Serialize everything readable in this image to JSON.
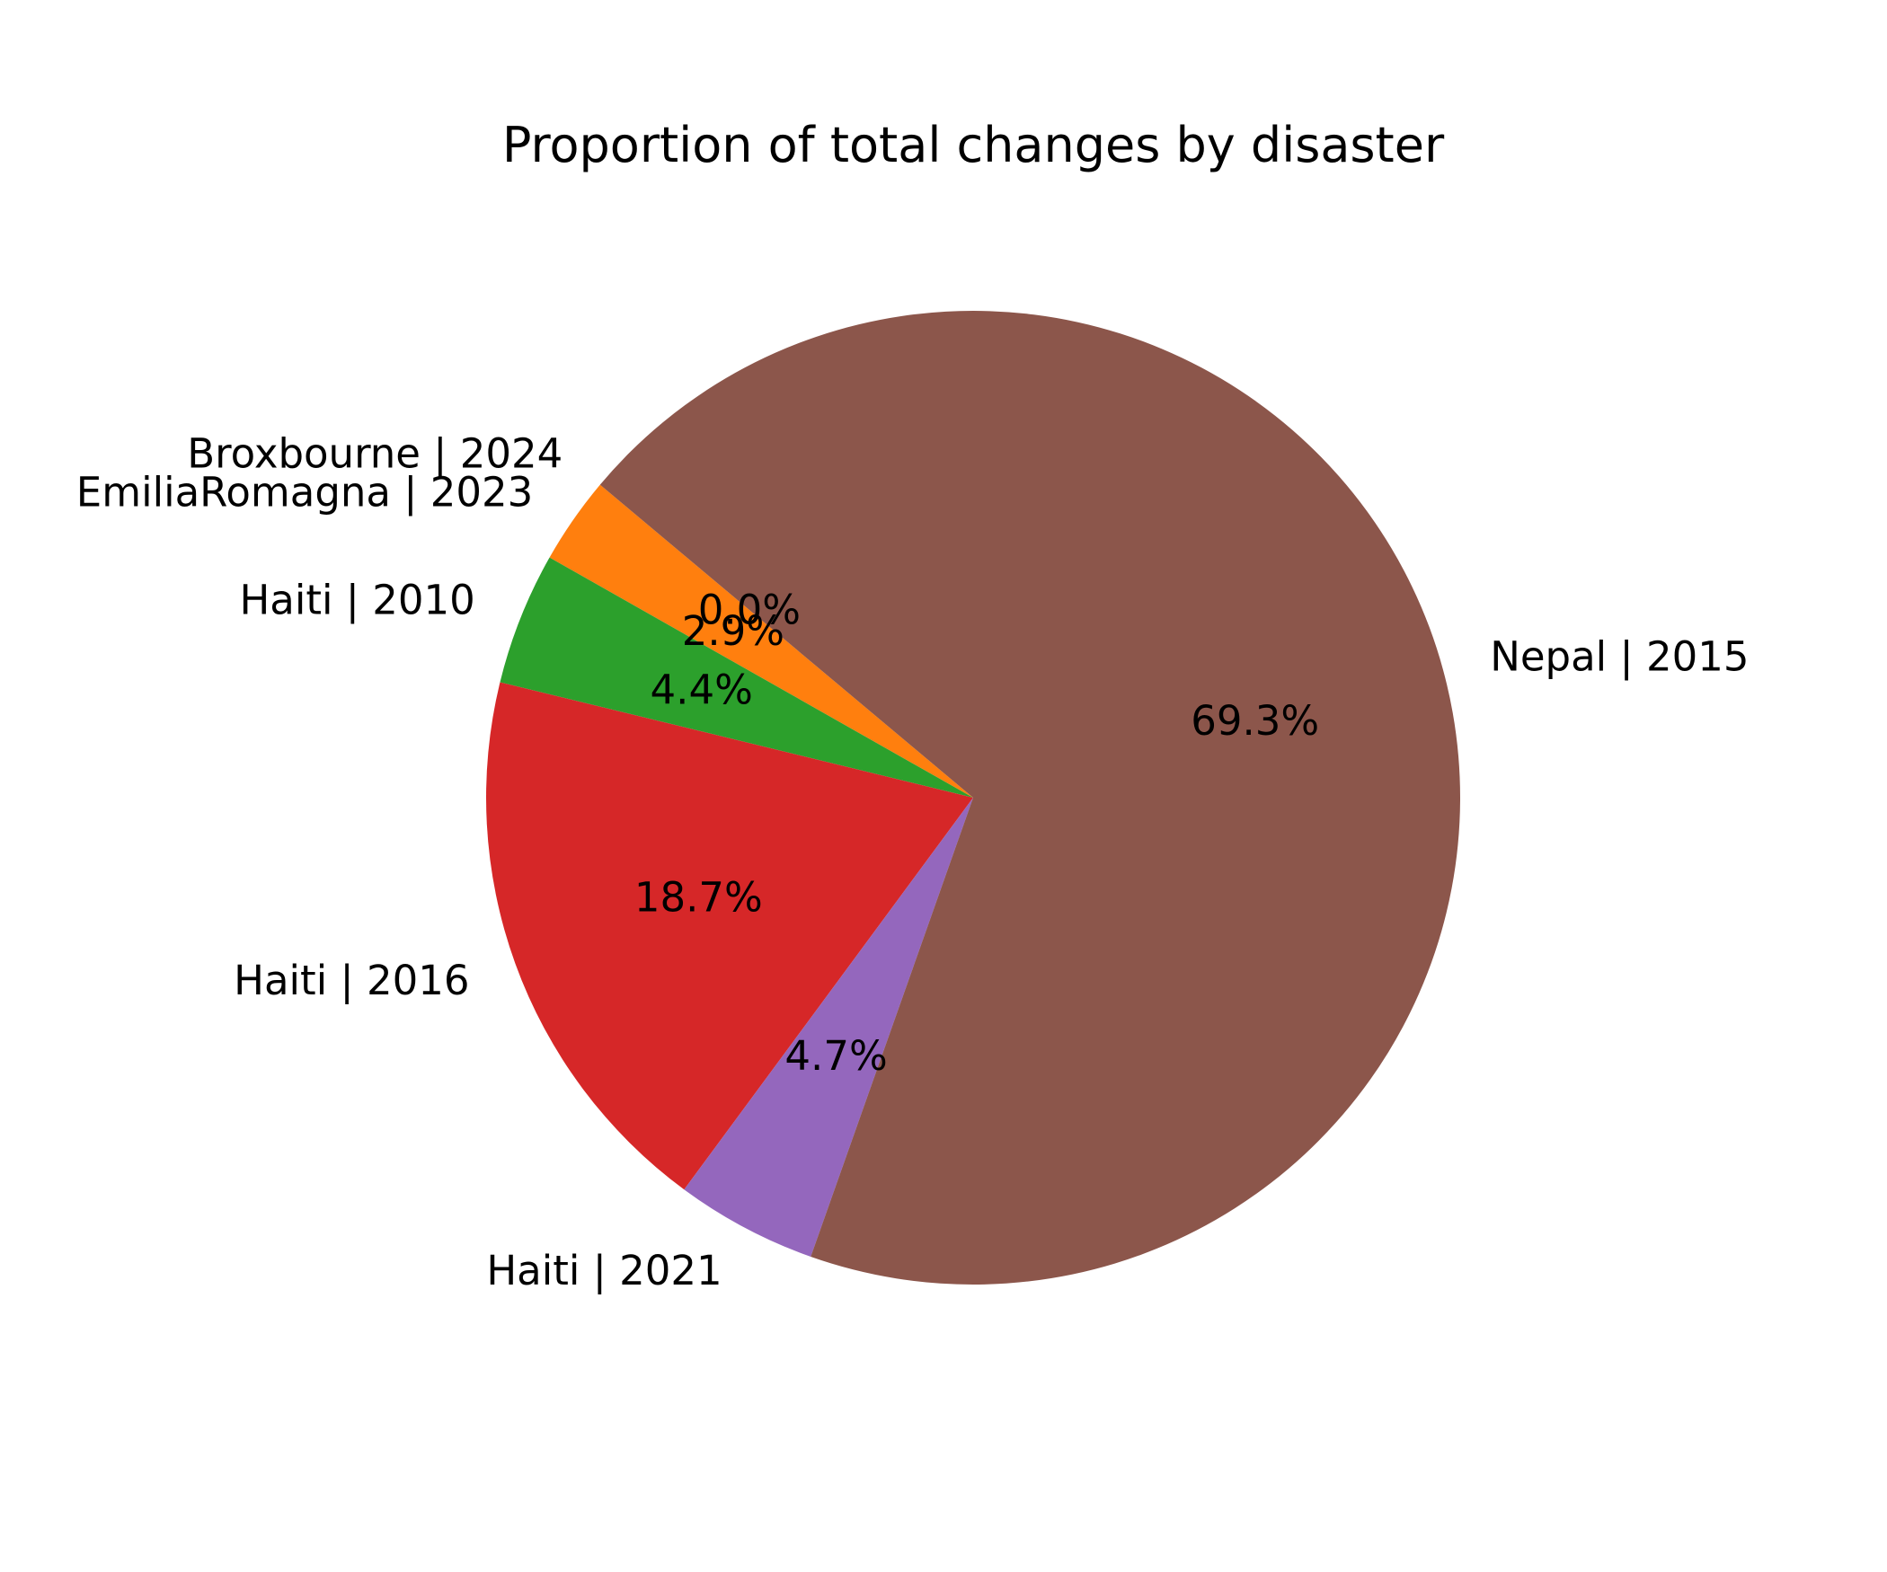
{
  "chart_data": {
    "type": "pie",
    "title": "Proportion of total changes by disaster",
    "start_angle_deg": 140,
    "direction": "counterclockwise",
    "slices": [
      {
        "label": "Broxbourne | 2024",
        "value": 0.0,
        "pct_label": "0.0%",
        "color": "#1f77b4"
      },
      {
        "label": "EmiliaRomagna | 2023",
        "value": 2.9,
        "pct_label": "2.9%",
        "color": "#ff7f0e"
      },
      {
        "label": "Haiti | 2010",
        "value": 4.4,
        "pct_label": "4.4%",
        "color": "#2ca02c"
      },
      {
        "label": "Haiti | 2016",
        "value": 18.7,
        "pct_label": "18.7%",
        "color": "#d62728"
      },
      {
        "label": "Haiti | 2021",
        "value": 4.7,
        "pct_label": "4.7%",
        "color": "#9467bd"
      },
      {
        "label": "Nepal | 2015",
        "value": 69.3,
        "pct_label": "69.3%",
        "color": "#8c564b"
      }
    ]
  }
}
